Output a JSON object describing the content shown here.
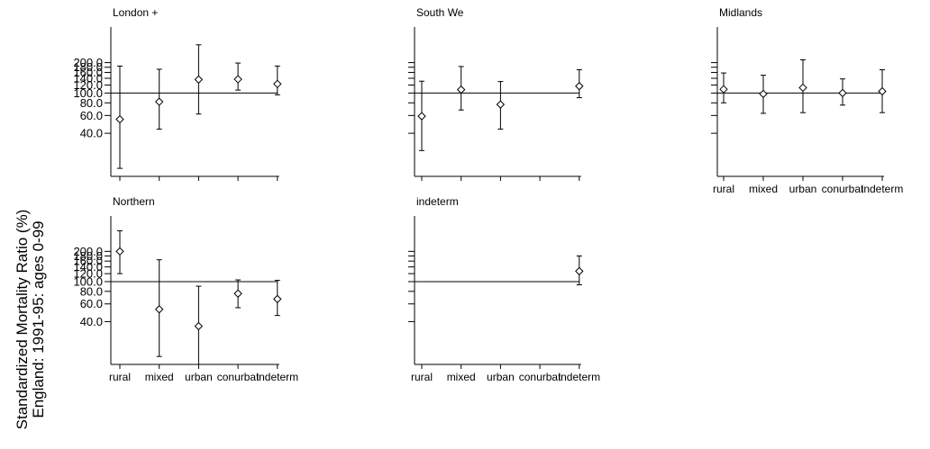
{
  "chart_data": {
    "type": "scatter",
    "subtype": "point-with-error-bars, faceted panels, log y-scale",
    "y_title_lines": [
      "Standardized Mortality Ratio (%)",
      "England: 1991-95: ages 0-99"
    ],
    "categories": [
      "rural",
      "mixed",
      "urban",
      "conurbat",
      "indeterm"
    ],
    "y_scale": "log",
    "y_ticks": [
      40.0,
      60.0,
      80.0,
      100.0,
      120.0,
      140.0,
      160.0,
      180.0,
      200.0
    ],
    "y_tick_labels": [
      "40.0",
      "60.0",
      "80.0",
      "100.0",
      "120.0",
      "140.0",
      "160.0",
      "180.0",
      "200.0"
    ],
    "y_range": [
      15,
      450
    ],
    "reference_line": 100.0,
    "panels": [
      {
        "title": "London +",
        "show_y_tick_labels": true,
        "show_x_tick_labels": false,
        "points": [
          {
            "category": "rural",
            "value": 55,
            "lower": 18,
            "upper": 185
          },
          {
            "category": "mixed",
            "value": 82,
            "lower": 44,
            "upper": 172
          },
          {
            "category": "urban",
            "value": 136,
            "lower": 62,
            "upper": 300
          },
          {
            "category": "conurbat",
            "value": 137,
            "lower": 107,
            "upper": 198
          },
          {
            "category": "indeterm",
            "value": 123,
            "lower": 96,
            "upper": 185
          }
        ]
      },
      {
        "title": "South We",
        "show_y_tick_labels": false,
        "show_x_tick_labels": false,
        "points": [
          {
            "category": "rural",
            "value": 59,
            "lower": 27,
            "upper": 131
          },
          {
            "category": "mixed",
            "value": 108,
            "lower": 68,
            "upper": 183
          },
          {
            "category": "urban",
            "value": 77,
            "lower": 44,
            "upper": 130
          },
          {
            "category": "indeterm",
            "value": 117,
            "lower": 90,
            "upper": 170
          }
        ]
      },
      {
        "title": "Midlands",
        "show_y_tick_labels": false,
        "show_x_tick_labels": true,
        "points": [
          {
            "category": "rural",
            "value": 109,
            "lower": 80,
            "upper": 158
          },
          {
            "category": "mixed",
            "value": 98,
            "lower": 63,
            "upper": 150
          },
          {
            "category": "urban",
            "value": 113,
            "lower": 64,
            "upper": 213
          },
          {
            "category": "conurbat",
            "value": 100,
            "lower": 76,
            "upper": 138
          },
          {
            "category": "indeterm",
            "value": 104,
            "lower": 64,
            "upper": 170
          }
        ]
      },
      {
        "title": "Northern",
        "show_y_tick_labels": true,
        "show_x_tick_labels": true,
        "points": [
          {
            "category": "rural",
            "value": 200,
            "lower": 120,
            "upper": 320
          },
          {
            "category": "mixed",
            "value": 53,
            "lower": 18,
            "upper": 165
          },
          {
            "category": "urban",
            "value": 36,
            "lower": 15,
            "upper": 90
          },
          {
            "category": "conurbat",
            "value": 76,
            "lower": 55,
            "upper": 104
          },
          {
            "category": "indeterm",
            "value": 67,
            "lower": 46,
            "upper": 103
          }
        ]
      },
      {
        "title": "indeterm",
        "show_y_tick_labels": false,
        "show_x_tick_labels": true,
        "points": [
          {
            "category": "indeterm",
            "value": 127,
            "lower": 93,
            "upper": 180
          }
        ]
      }
    ]
  }
}
